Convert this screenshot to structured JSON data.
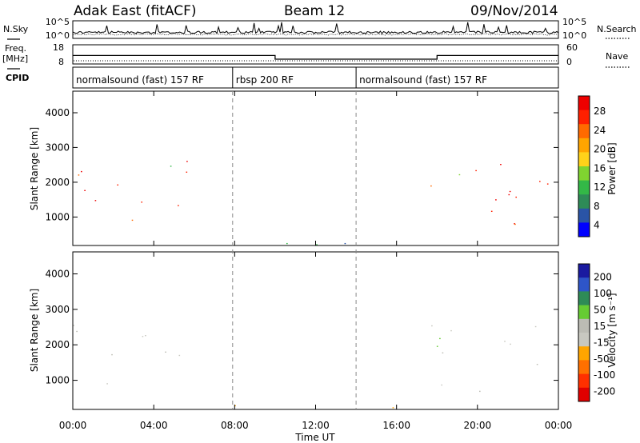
{
  "header": {
    "title": "Adak East (fitACF)",
    "beam": "Beam 12",
    "date": "09/Nov/2014"
  },
  "left_labels": {
    "nsky": "N.Sky",
    "freq": "Freq.",
    "freq_unit": "[MHz]",
    "cpid": "CPID"
  },
  "right_labels": {
    "nsearch": "N.Search",
    "nave": "Nave"
  },
  "colors": {
    "power_scale": [
      "#0000ff",
      "#2a54a6",
      "#2e8b57",
      "#33b847",
      "#80d430",
      "#ffd21a",
      "#ffa500",
      "#ff6a00",
      "#ff2000",
      "#ee0000"
    ],
    "velocity_scale": [
      "#1a1aa0",
      "#2e55c8",
      "#2e8b57",
      "#66cc33",
      "#bcbcb4",
      "#c8c8c0",
      "#ffa500",
      "#ff7000",
      "#ff3000",
      "#e00000"
    ]
  },
  "chart_data": [
    {
      "type": "line",
      "panel": "noise",
      "left_ticks": [
        "10^5",
        "10^0"
      ],
      "right_ticks": [
        "10^5",
        "10^0"
      ],
      "series": [
        {
          "name": "N.Sky",
          "style": "solid"
        },
        {
          "name": "N.Search",
          "style": "dotted"
        }
      ]
    },
    {
      "type": "line",
      "panel": "frequency",
      "left_ticks": [
        "18",
        "8"
      ],
      "right_ticks": [
        "60",
        "0"
      ],
      "series": [
        {
          "name": "Freq.",
          "style": "solid",
          "x_hours": [
            0,
            10,
            10,
            18,
            18,
            24
          ],
          "values": [
            13.3,
            13.3,
            11.0,
            11.0,
            13.3,
            13.3
          ]
        },
        {
          "name": "Nave",
          "style": "dotted"
        }
      ]
    },
    {
      "type": "table",
      "panel": "cpid",
      "segments": [
        {
          "label": "normalsound (fast) 157 RF",
          "start_hour": 0,
          "end_hour": 7.9
        },
        {
          "label": "rbsp 200 RF",
          "start_hour": 7.9,
          "end_hour": 14.0
        },
        {
          "label": "normalsound (fast) 157 RF",
          "start_hour": 14.0,
          "end_hour": 24
        }
      ]
    },
    {
      "type": "heatmap",
      "panel": "power",
      "ylabel": "Slant Range [km]",
      "yticks": [
        "4000",
        "3000",
        "2000",
        "1000"
      ],
      "ytick_values": [
        4000,
        3000,
        2000,
        1000
      ],
      "ylim": [
        180,
        4620
      ],
      "colorbar_label": "Power [dB]",
      "colorbar_ticks": [
        "28",
        "24",
        "20",
        "16",
        "12",
        "8",
        "4"
      ],
      "colorbar_range": [
        0,
        30
      ],
      "scatter_regions": [
        {
          "x_range": [
            0,
            5.8
          ],
          "y_range": [
            700,
            2700
          ],
          "value_range": [
            22,
            30
          ]
        },
        {
          "x_range": [
            4.5,
            6.0
          ],
          "y_range": [
            1600,
            2500
          ],
          "value_range": [
            8,
            18
          ]
        },
        {
          "x_range": [
            17.5,
            24
          ],
          "y_range": [
            700,
            2700
          ],
          "value_range": [
            22,
            30
          ]
        },
        {
          "x_range": [
            17.8,
            19.5
          ],
          "y_range": [
            1700,
            2600
          ],
          "value_range": [
            8,
            18
          ]
        },
        {
          "x_range": [
            6,
            19
          ],
          "y_range": [
            200,
            450
          ],
          "value_range": [
            2,
            12
          ]
        },
        {
          "x_range": [
            11,
            13
          ],
          "y_range": [
            300,
            450
          ],
          "value_range": [
            14,
            22
          ]
        }
      ]
    },
    {
      "type": "heatmap",
      "panel": "velocity",
      "ylabel": "Slant Range [km]",
      "yticks": [
        "4000",
        "3000",
        "2000",
        "1000"
      ],
      "ytick_values": [
        4000,
        3000,
        2000,
        1000
      ],
      "ylim": [
        180,
        4620
      ],
      "xlabel": "Time UT",
      "xticks": [
        "00:00",
        "04:00",
        "08:00",
        "12:00",
        "16:00",
        "20:00",
        "00:00"
      ],
      "xtick_hours": [
        0,
        4,
        8,
        12,
        16,
        20,
        24
      ],
      "colorbar_label": "Velocity [m s⁻¹]",
      "colorbar_ticks": [
        "200",
        "100",
        "50",
        "15",
        "-15",
        "-50",
        "-100",
        "-200"
      ],
      "scatter_regions": [
        {
          "x_range": [
            0,
            5.8
          ],
          "y_range": [
            700,
            2700
          ],
          "value_range": [
            -15,
            15
          ]
        },
        {
          "x_range": [
            17.5,
            24
          ],
          "y_range": [
            700,
            2700
          ],
          "value_range": [
            -15,
            15
          ]
        },
        {
          "x_range": [
            17.8,
            20
          ],
          "y_range": [
            1600,
            2600
          ],
          "value_range": [
            15,
            50
          ]
        },
        {
          "x_range": [
            10.5,
            14
          ],
          "y_range": [
            300,
            450
          ],
          "value_range": [
            15,
            50
          ]
        },
        {
          "x_range": [
            7,
            19
          ],
          "y_range": [
            180,
            400
          ],
          "value_range": [
            -100,
            -15
          ]
        }
      ]
    }
  ]
}
